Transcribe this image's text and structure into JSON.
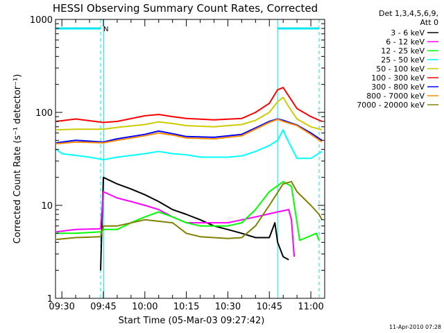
{
  "chart_data": {
    "type": "line",
    "title": "HESSI Observing Summary Count Rates, Corrected",
    "xlabel": "Start Time (05-Mar-03 09:27:42)",
    "ylabel": "Corrected Count Rate (s⁻¹ detector⁻¹)",
    "footer": "11-Apr-2010 07:28",
    "y_scale": "log",
    "ylim": [
      1,
      1000
    ],
    "xlim": [
      "09:27:42",
      "11:05:00"
    ],
    "x_ticks": [
      "09:30",
      "09:45",
      "10:00",
      "10:15",
      "10:30",
      "10:45",
      "11:00"
    ],
    "y_ticks": [
      "1",
      "10",
      "100",
      "1000"
    ],
    "legend_header": [
      "Det 1,3,4,5,6,9,",
      "Att 0"
    ],
    "legend_position": "right",
    "annotations": [
      {
        "text": "N",
        "time": "09:44:00"
      }
    ],
    "flags": {
      "vertical_lines": [
        "09:27:42",
        "09:44:00",
        "09:45:10",
        "10:48:00",
        "11:03:00"
      ],
      "bars": [
        [
          "09:28:00",
          "09:44:00"
        ],
        [
          "10:48:00",
          "11:03:00"
        ]
      ],
      "bar_level": 800
    },
    "series": [
      {
        "name": "3 - 6 keV",
        "color": "#000000",
        "points": [
          [
            "09:44:00",
            2.0
          ],
          [
            "09:45:00",
            20
          ],
          [
            "09:50:00",
            17
          ],
          [
            "09:55:00",
            15
          ],
          [
            "10:00:00",
            13
          ],
          [
            "10:05:00",
            11
          ],
          [
            "10:10:00",
            9
          ],
          [
            "10:15:00",
            8
          ],
          [
            "10:20:00",
            7
          ],
          [
            "10:25:00",
            6
          ],
          [
            "10:30:00",
            5.5
          ],
          [
            "10:35:00",
            5
          ],
          [
            "10:40:00",
            4.5
          ],
          [
            "10:45:00",
            4.5
          ],
          [
            "10:47:00",
            6.5
          ],
          [
            "10:48:00",
            4
          ],
          [
            "10:50:00",
            2.8
          ],
          [
            "10:52:00",
            2.6
          ]
        ]
      },
      {
        "name": "6 - 12 keV",
        "color": "#ff00ff",
        "points": [
          [
            "09:28:00",
            5.2
          ],
          [
            "09:35:00",
            5.5
          ],
          [
            "09:44:00",
            5.6
          ],
          [
            "09:45:00",
            14
          ],
          [
            "09:50:00",
            12
          ],
          [
            "09:55:00",
            11
          ],
          [
            "10:00:00",
            10
          ],
          [
            "10:05:00",
            9
          ],
          [
            "10:10:00",
            7.5
          ],
          [
            "10:15:00",
            6.5
          ],
          [
            "10:20:00",
            6.5
          ],
          [
            "10:30:00",
            6.5
          ],
          [
            "10:40:00",
            7.5
          ],
          [
            "10:48:00",
            8.5
          ],
          [
            "10:52:00",
            9
          ],
          [
            "10:53:00",
            7
          ],
          [
            "10:54:00",
            2.8
          ]
        ]
      },
      {
        "name": "12 - 25 keV",
        "color": "#00ff00",
        "points": [
          [
            "09:28:00",
            5.0
          ],
          [
            "09:35:00",
            5.0
          ],
          [
            "09:44:00",
            5.2
          ],
          [
            "09:45:00",
            5.5
          ],
          [
            "09:50:00",
            5.5
          ],
          [
            "09:55:00",
            6.5
          ],
          [
            "10:00:00",
            7.5
          ],
          [
            "10:05:00",
            8.5
          ],
          [
            "10:10:00",
            7.5
          ],
          [
            "10:15:00",
            6.5
          ],
          [
            "10:20:00",
            6
          ],
          [
            "10:30:00",
            6
          ],
          [
            "10:35:00",
            6.5
          ],
          [
            "10:40:00",
            9
          ],
          [
            "10:45:00",
            14
          ],
          [
            "10:50:00",
            18
          ],
          [
            "10:53:00",
            16
          ],
          [
            "10:56:00",
            4.2
          ],
          [
            "11:02:00",
            5
          ],
          [
            "11:03:00",
            4.2
          ]
        ]
      },
      {
        "name": "25 - 50 keV",
        "color": "#00ffff",
        "points": [
          [
            "09:28:00",
            40
          ],
          [
            "09:30:00",
            36
          ],
          [
            "09:40:00",
            33
          ],
          [
            "09:45:00",
            31
          ],
          [
            "09:50:00",
            33
          ],
          [
            "10:00:00",
            36
          ],
          [
            "10:05:00",
            38
          ],
          [
            "10:10:00",
            36
          ],
          [
            "10:15:00",
            35
          ],
          [
            "10:20:00",
            33
          ],
          [
            "10:30:00",
            33
          ],
          [
            "10:35:00",
            34
          ],
          [
            "10:40:00",
            38
          ],
          [
            "10:45:00",
            44
          ],
          [
            "10:48:00",
            50
          ],
          [
            "10:50:00",
            65
          ],
          [
            "10:51:00",
            55
          ],
          [
            "10:53:00",
            42
          ],
          [
            "10:55:00",
            32
          ],
          [
            "11:00:00",
            32
          ],
          [
            "11:04:00",
            38
          ]
        ]
      },
      {
        "name": "50 - 100 keV",
        "color": "#cccc00",
        "points": [
          [
            "09:28:00",
            65
          ],
          [
            "09:35:00",
            66
          ],
          [
            "09:45:00",
            66
          ],
          [
            "09:50:00",
            69
          ],
          [
            "10:00:00",
            74
          ],
          [
            "10:05:00",
            79
          ],
          [
            "10:10:00",
            76
          ],
          [
            "10:15:00",
            72
          ],
          [
            "10:25:00",
            70
          ],
          [
            "10:35:00",
            74
          ],
          [
            "10:40:00",
            82
          ],
          [
            "10:45:00",
            100
          ],
          [
            "10:48:00",
            130
          ],
          [
            "10:50:00",
            145
          ],
          [
            "10:52:00",
            115
          ],
          [
            "10:55:00",
            85
          ],
          [
            "11:00:00",
            70
          ],
          [
            "11:04:00",
            65
          ]
        ]
      },
      {
        "name": "100 - 300 keV",
        "color": "#ff0000",
        "points": [
          [
            "09:28:00",
            80
          ],
          [
            "09:35:00",
            85
          ],
          [
            "09:45:00",
            78
          ],
          [
            "09:50:00",
            80
          ],
          [
            "10:00:00",
            92
          ],
          [
            "10:05:00",
            95
          ],
          [
            "10:10:00",
            90
          ],
          [
            "10:15:00",
            86
          ],
          [
            "10:25:00",
            83
          ],
          [
            "10:35:00",
            86
          ],
          [
            "10:40:00",
            100
          ],
          [
            "10:45:00",
            125
          ],
          [
            "10:48:00",
            175
          ],
          [
            "10:50:00",
            185
          ],
          [
            "10:52:00",
            150
          ],
          [
            "10:55:00",
            110
          ],
          [
            "11:00:00",
            90
          ],
          [
            "11:04:00",
            80
          ]
        ]
      },
      {
        "name": "300 - 800 keV",
        "color": "#0000ff",
        "points": [
          [
            "09:28:00",
            47
          ],
          [
            "09:35:00",
            50
          ],
          [
            "09:45:00",
            48
          ],
          [
            "09:50:00",
            52
          ],
          [
            "10:00:00",
            58
          ],
          [
            "10:05:00",
            63
          ],
          [
            "10:10:00",
            59
          ],
          [
            "10:15:00",
            55
          ],
          [
            "10:25:00",
            54
          ],
          [
            "10:35:00",
            58
          ],
          [
            "10:40:00",
            68
          ],
          [
            "10:45:00",
            80
          ],
          [
            "10:48:00",
            85
          ],
          [
            "10:50:00",
            82
          ],
          [
            "10:55:00",
            73
          ],
          [
            "11:00:00",
            60
          ],
          [
            "11:04:00",
            50
          ]
        ]
      },
      {
        "name": "800 - 7000 keV",
        "color": "#ff8c00",
        "points": [
          [
            "09:28:00",
            46
          ],
          [
            "09:35:00",
            48
          ],
          [
            "09:45:00",
            47
          ],
          [
            "09:50:00",
            50
          ],
          [
            "10:00:00",
            56
          ],
          [
            "10:05:00",
            60
          ],
          [
            "10:10:00",
            57
          ],
          [
            "10:15:00",
            53
          ],
          [
            "10:25:00",
            52
          ],
          [
            "10:35:00",
            56
          ],
          [
            "10:40:00",
            66
          ],
          [
            "10:45:00",
            78
          ],
          [
            "10:48:00",
            84
          ],
          [
            "10:50:00",
            80
          ],
          [
            "10:55:00",
            72
          ],
          [
            "11:00:00",
            58
          ],
          [
            "11:04:00",
            48
          ]
        ]
      },
      {
        "name": "7000 - 20000 keV",
        "color": "#808000",
        "points": [
          [
            "09:28:00",
            4.3
          ],
          [
            "09:35:00",
            4.5
          ],
          [
            "09:44:00",
            4.6
          ],
          [
            "09:45:00",
            6
          ],
          [
            "09:50:00",
            6
          ],
          [
            "10:00:00",
            7
          ],
          [
            "10:10:00",
            6.5
          ],
          [
            "10:15:00",
            5
          ],
          [
            "10:20:00",
            4.6
          ],
          [
            "10:30:00",
            4.4
          ],
          [
            "10:35:00",
            4.5
          ],
          [
            "10:40:00",
            6
          ],
          [
            "10:45:00",
            10
          ],
          [
            "10:50:00",
            17
          ],
          [
            "10:53:00",
            18
          ],
          [
            "10:55:00",
            14
          ],
          [
            "11:00:00",
            10
          ],
          [
            "11:03:00",
            8
          ],
          [
            "11:04:00",
            7
          ]
        ]
      }
    ]
  }
}
